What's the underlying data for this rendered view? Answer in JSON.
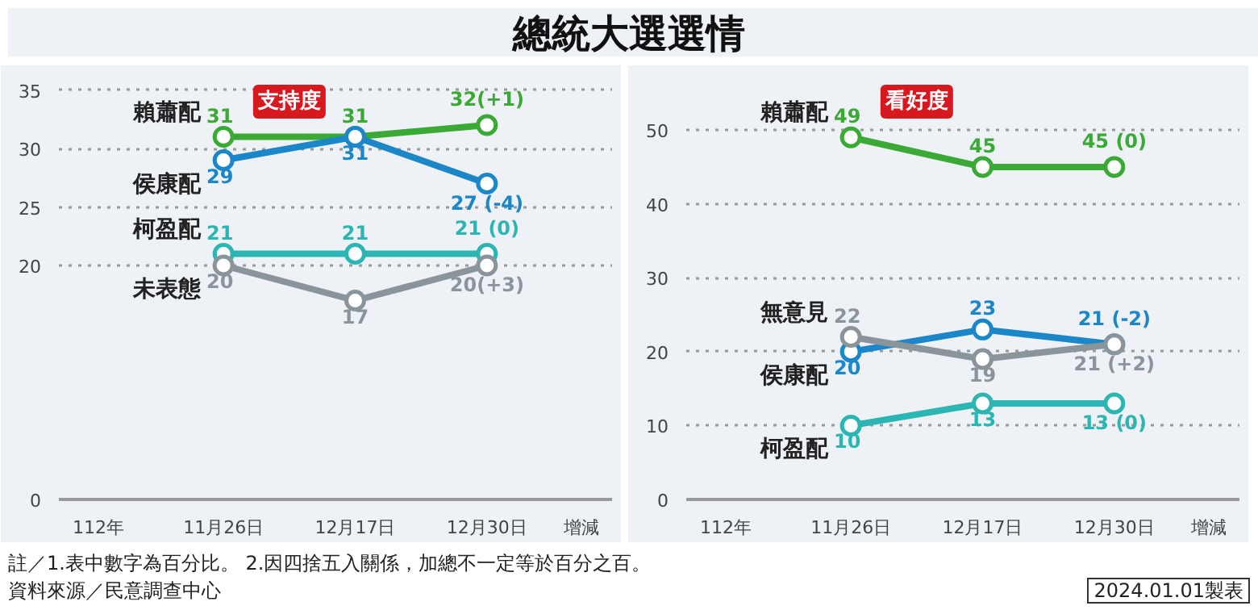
{
  "chart_data": [
    {
      "type": "line",
      "title": "總統大選選情",
      "subtitle": "支持度",
      "categories": [
        "11月26日",
        "12月17日",
        "12月30日"
      ],
      "ylim": [
        0,
        36
      ],
      "yticks": [
        0,
        20,
        25,
        30,
        35
      ],
      "grid": "y",
      "legend": false,
      "marker": "circle",
      "line_style": "solid",
      "series": [
        {
          "name": "賴蕭配",
          "color": "#3aa935",
          "values": [
            31,
            31,
            32
          ],
          "value_labels": [
            "31",
            "31",
            "32(+1)"
          ]
        },
        {
          "name": "侯康配",
          "color": "#1b86c8",
          "values": [
            29,
            31,
            27
          ],
          "value_labels": [
            "29",
            "31",
            "27 (-4)"
          ]
        },
        {
          "name": "柯盈配",
          "color": "#2bb5b3",
          "values": [
            21,
            21,
            21
          ],
          "value_labels": [
            "21",
            "21",
            "21 (0)"
          ]
        },
        {
          "name": "未表態",
          "color": "#8a949b",
          "values": [
            20,
            17,
            20
          ],
          "value_labels": [
            "20",
            "17",
            "20(+3)"
          ]
        }
      ],
      "annotations": [
        "112年",
        "增減",
        "註／1.表中數字為百分比。 2.因四捨五入關係，加總不一定等於百分之百。",
        "資料來源／民意調查中心"
      ]
    },
    {
      "type": "line",
      "subtitle": "看好度",
      "categories": [
        "11月26日",
        "12月17日",
        "12月30日"
      ],
      "ylim": [
        0,
        57
      ],
      "yticks": [
        0,
        10,
        20,
        30,
        40,
        50
      ],
      "grid": "y",
      "legend": false,
      "marker": "circle",
      "line_style": "solid",
      "series": [
        {
          "name": "賴蕭配",
          "color": "#3aa935",
          "values": [
            49,
            45,
            45
          ],
          "value_labels": [
            "49",
            "45",
            "45 (0)"
          ]
        },
        {
          "name": "侯康配",
          "color": "#1b86c8",
          "values": [
            20,
            23,
            21
          ],
          "value_labels": [
            "20",
            "23",
            "21 (-2)"
          ]
        },
        {
          "name": "無意見",
          "color": "#8a949b",
          "values": [
            22,
            19,
            21
          ],
          "value_labels": [
            "22",
            "19",
            "21 (+2)"
          ]
        },
        {
          "name": "柯盈配",
          "color": "#2bb5b3",
          "values": [
            10,
            13,
            13
          ],
          "value_labels": [
            "10",
            "13",
            "13 (0)"
          ]
        }
      ],
      "annotations": [
        "112年",
        "增減",
        "2024.01.01製表"
      ]
    }
  ]
}
